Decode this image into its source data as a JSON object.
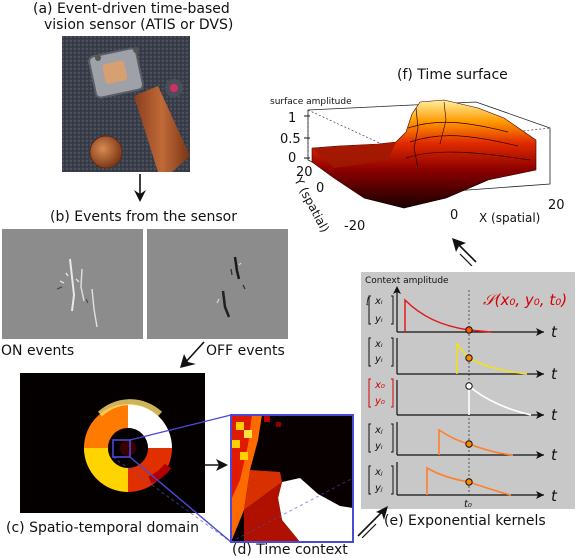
{
  "panel_a": {
    "caption_line1": "(a) Event-driven time-based",
    "caption_line2": "vision sensor (ATIS or DVS)"
  },
  "panel_b": {
    "caption": "(b) Events from the sensor",
    "on_label": "ON events",
    "off_label": "OFF events"
  },
  "panel_c": {
    "caption": "(c) Spatio-temporal domain"
  },
  "panel_d": {
    "caption": "(d) Time context"
  },
  "panel_e": {
    "caption": "(e) Exponential kernels",
    "context_label": "Context amplitude",
    "surface_label": "𝒮(x₀, y₀, t₀)",
    "t0_label": "t₀",
    "t_label": "t",
    "rows": [
      {
        "top": "xᵢ",
        "bottom": "yᵢ",
        "color": "#e31a1c",
        "highlight": false
      },
      {
        "top": "xᵢ",
        "bottom": "yᵢ",
        "color": "#f0e020",
        "highlight": false
      },
      {
        "top": "x₀",
        "bottom": "y₀",
        "color": "#ffffff",
        "highlight": true
      },
      {
        "top": "xⱼ",
        "bottom": "yᵢ",
        "color": "#ff7f2a",
        "highlight": false
      },
      {
        "top": "xⱼ",
        "bottom": "yⱼ",
        "color": "#ff7f2a",
        "highlight": false
      }
    ]
  },
  "panel_f": {
    "title": "(f) Time surface",
    "z_label": "surface amplitude",
    "z_ticks": [
      "1",
      "0.5",
      "0"
    ],
    "y_label": "Y (spatial)",
    "y_ticks": [
      "20",
      "0",
      "-20"
    ],
    "x_label": "X (spatial)",
    "x_ticks": [
      "-20",
      "0",
      "20"
    ]
  },
  "colors": {
    "kernel_bg": "#c8c8c8",
    "accent_red": "#d40000",
    "frame_blue": "#4a4ad8"
  }
}
